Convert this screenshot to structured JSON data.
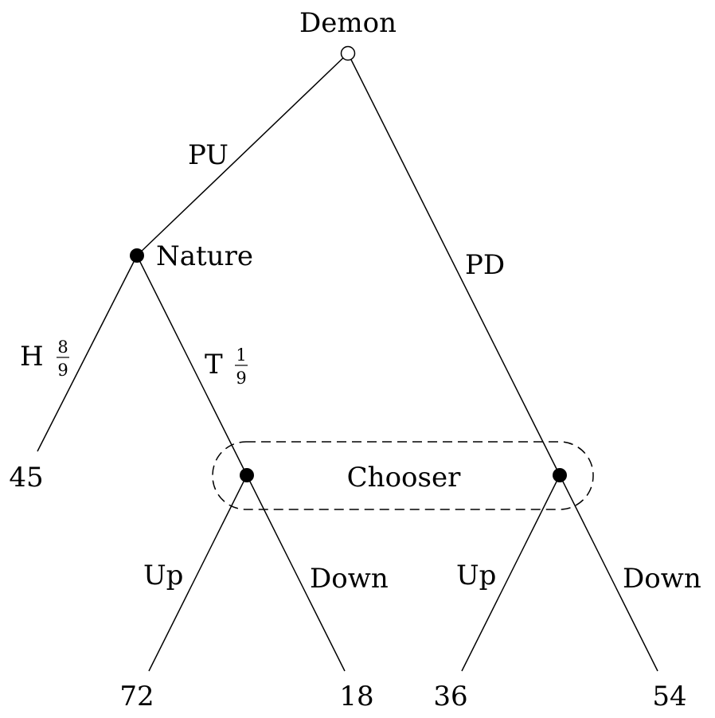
{
  "nodes": {
    "demon": "Demon",
    "nature": "Nature",
    "chooser": "Chooser"
  },
  "edges": {
    "pu": "PU",
    "pd": "PD",
    "heads": {
      "label": "H",
      "prob_num": "8",
      "prob_den": "9"
    },
    "tails": {
      "label": "T",
      "prob_num": "1",
      "prob_den": "9"
    },
    "left_up": "Up",
    "left_down": "Down",
    "right_up": "Up",
    "right_down": "Down"
  },
  "payoffs": {
    "heads": "45",
    "left_up": "72",
    "left_down": "18",
    "right_up": "36",
    "right_down": "54"
  },
  "colors": {
    "line": "#000000",
    "background": "#ffffff"
  }
}
